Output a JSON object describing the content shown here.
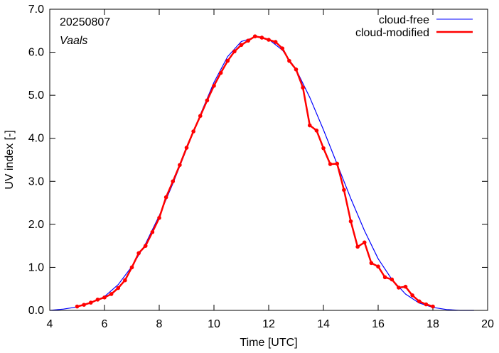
{
  "chart_data": {
    "type": "line",
    "date_label": "20250807",
    "location_label": "Vaals",
    "xlabel": "Time  [UTC]",
    "ylabel": "UV index  [-]",
    "xlim": [
      4,
      20
    ],
    "ylim": [
      0,
      7
    ],
    "x_ticks": [
      4,
      6,
      8,
      10,
      12,
      14,
      16,
      18,
      20
    ],
    "y_ticks": [
      0,
      1,
      2,
      3,
      4,
      5,
      6,
      7
    ],
    "x_tick_labels": [
      "4",
      "6",
      "8",
      "10",
      "12",
      "14",
      "16",
      "18",
      "20"
    ],
    "y_tick_labels": [
      "0.0",
      "1.0",
      "2.0",
      "3.0",
      "4.0",
      "5.0",
      "6.0",
      "7.0"
    ],
    "grid": false,
    "legend_position": "top-right",
    "series": [
      {
        "name": "cloud-free",
        "color": "#0000ff",
        "x": [
          4.0,
          4.5,
          5.0,
          5.5,
          6.0,
          6.5,
          7.0,
          7.5,
          8.0,
          8.5,
          9.0,
          9.5,
          10.0,
          10.5,
          11.0,
          11.5,
          11.7,
          12.0,
          12.5,
          13.0,
          13.5,
          14.0,
          14.5,
          15.0,
          15.5,
          16.0,
          16.5,
          17.0,
          17.5,
          18.0,
          18.5,
          19.0,
          19.5
        ],
        "y": [
          0.0,
          0.03,
          0.08,
          0.17,
          0.32,
          0.6,
          1.02,
          1.55,
          2.2,
          2.95,
          3.75,
          4.55,
          5.3,
          5.9,
          6.25,
          6.35,
          6.36,
          6.3,
          6.05,
          5.6,
          4.95,
          4.2,
          3.4,
          2.6,
          1.85,
          1.2,
          0.72,
          0.38,
          0.17,
          0.07,
          0.02,
          0.0,
          0.0
        ]
      },
      {
        "name": "cloud-modified",
        "color": "#ff0000",
        "x": [
          5.0,
          5.25,
          5.5,
          5.75,
          6.0,
          6.25,
          6.5,
          6.75,
          7.0,
          7.25,
          7.5,
          7.75,
          8.0,
          8.25,
          8.5,
          8.75,
          9.0,
          9.25,
          9.5,
          9.75,
          10.0,
          10.25,
          10.5,
          10.75,
          11.0,
          11.25,
          11.5,
          11.75,
          12.0,
          12.25,
          12.5,
          12.75,
          13.0,
          13.25,
          13.5,
          13.75,
          14.0,
          14.25,
          14.5,
          14.75,
          15.0,
          15.25,
          15.5,
          15.75,
          16.0,
          16.25,
          16.5,
          16.75,
          17.0,
          17.25,
          17.5,
          17.75,
          18.0
        ],
        "y": [
          0.09,
          0.13,
          0.18,
          0.25,
          0.3,
          0.38,
          0.52,
          0.7,
          1.0,
          1.33,
          1.5,
          1.82,
          2.15,
          2.63,
          3.0,
          3.38,
          3.78,
          4.16,
          4.52,
          4.88,
          5.22,
          5.52,
          5.8,
          6.02,
          6.17,
          6.27,
          6.37,
          6.34,
          6.29,
          6.24,
          6.09,
          5.8,
          5.6,
          5.18,
          4.3,
          4.18,
          3.77,
          3.4,
          3.41,
          2.8,
          2.07,
          1.48,
          1.58,
          1.1,
          1.02,
          0.77,
          0.72,
          0.53,
          0.55,
          0.35,
          0.21,
          0.14,
          0.09
        ]
      }
    ]
  }
}
